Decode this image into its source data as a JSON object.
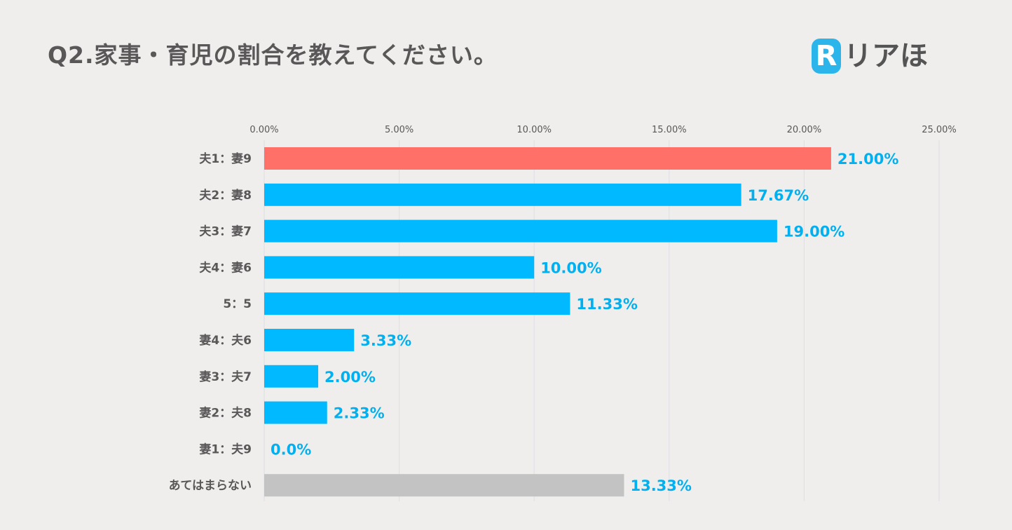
{
  "header": {
    "title": "Q2.家事・育児の割合を教えてください。",
    "logo_mark": "R",
    "logo_text": "リアほ"
  },
  "colors": {
    "background": "#efeeec",
    "highlight_bar": "#ff7168",
    "default_bar": "#00b9ff",
    "other_bar": "#c3c3c3",
    "value_text": "#00b0f0",
    "label_text": "#595757",
    "logo_accent": "#2bb5ea"
  },
  "chart_data": {
    "type": "bar",
    "orientation": "horizontal",
    "title": "Q2.家事・育児の割合を教えてください。",
    "xlabel": "",
    "ylabel": "",
    "xlim": [
      0,
      25
    ],
    "ticks": [
      0,
      5,
      10,
      15,
      20,
      25
    ],
    "tick_labels": [
      "0.00%",
      "5.00%",
      "10.00%",
      "15.00%",
      "20.00%",
      "25.00%"
    ],
    "categories": [
      "夫1：妻9",
      "夫2：妻8",
      "夫3：妻7",
      "夫4：妻6",
      "5：5",
      "妻4：夫6",
      "妻3：夫7",
      "妻2：夫8",
      "妻1：夫9",
      "あてはまらない"
    ],
    "values": [
      21.0,
      17.67,
      19.0,
      10.0,
      11.33,
      3.33,
      2.0,
      2.33,
      0.0,
      13.33
    ],
    "value_labels": [
      "21.00%",
      "17.67%",
      "19.00%",
      "10.00%",
      "11.33%",
      "3.33%",
      "2.00%",
      "2.33%",
      "0.0%",
      "13.33%"
    ],
    "bar_colors": [
      "#ff7168",
      "#00b9ff",
      "#00b9ff",
      "#00b9ff",
      "#00b9ff",
      "#00b9ff",
      "#00b9ff",
      "#00b9ff",
      "#00b9ff",
      "#c3c3c3"
    ],
    "grid": true
  }
}
